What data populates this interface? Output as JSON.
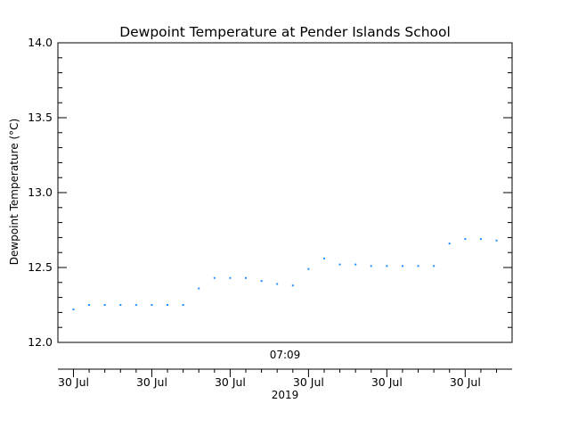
{
  "chart_data": {
    "type": "scatter",
    "title": "Dewpoint Temperature at Pender Islands School",
    "ylabel": "Dewpoint Temperature (°C)",
    "ylim": [
      12.0,
      14.0
    ],
    "yticks": [
      "12.0",
      "12.5",
      "13.0",
      "13.5",
      "14.0"
    ],
    "time_label": "07:09",
    "xtick_labels": [
      "30 Jul",
      "30 Jul",
      "30 Jul",
      "30 Jul",
      "30 Jul",
      "30 Jul"
    ],
    "xlabel": "2019",
    "marker_color": "#1e90ff",
    "grid": false,
    "x": [
      0,
      1,
      2,
      3,
      4,
      5,
      6,
      7,
      8,
      9,
      10,
      11,
      12,
      13,
      14,
      15,
      16,
      17,
      18,
      19,
      20,
      21,
      22,
      23,
      24,
      25,
      26,
      27
    ],
    "y": [
      12.22,
      12.25,
      12.25,
      12.25,
      12.25,
      12.25,
      12.25,
      12.25,
      12.36,
      12.43,
      12.43,
      12.43,
      12.41,
      12.39,
      12.38,
      12.49,
      12.56,
      12.52,
      12.52,
      12.51,
      12.51,
      12.51,
      12.51,
      12.51,
      12.66,
      12.69,
      12.69,
      12.68
    ]
  }
}
